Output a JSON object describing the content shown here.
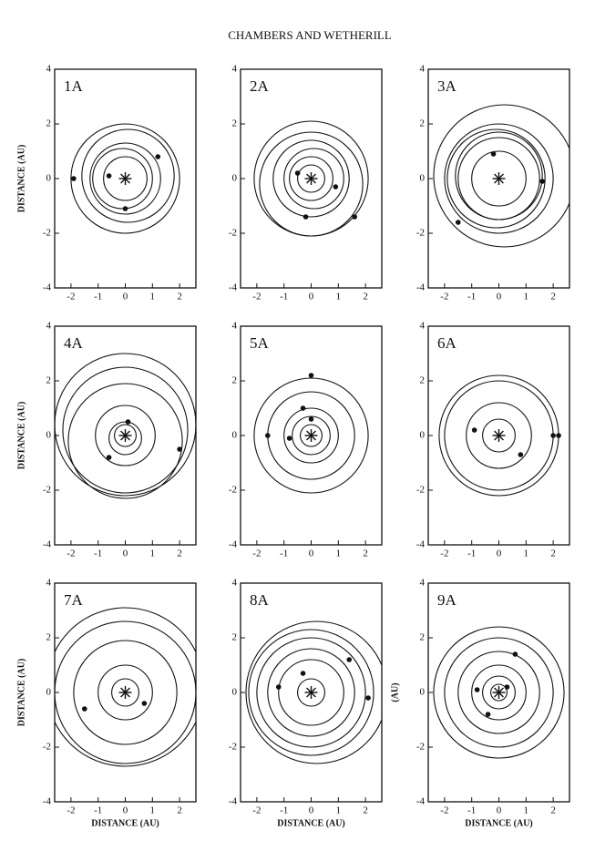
{
  "header": {
    "title": "CHAMBERS AND WETHERILL"
  },
  "chart_data": [
    {
      "type": "orbit",
      "label": "1A",
      "ylabel": "DISTANCE (AU)",
      "xlim": [
        -2.6,
        2.6
      ],
      "ylim": [
        -4,
        4
      ],
      "xticks": [
        -2,
        -1,
        0,
        1,
        2
      ],
      "yticks": [
        -4,
        -2,
        0,
        2,
        4
      ],
      "orbits": [
        {
          "cx": 0,
          "cy": 0,
          "r": 2.0
        },
        {
          "cx": 0.1,
          "cy": 0.1,
          "r": 1.7
        },
        {
          "cx": 0,
          "cy": 0,
          "r": 1.3
        },
        {
          "cx": -0.1,
          "cy": 0,
          "r": 1.1
        },
        {
          "cx": 0,
          "cy": 0,
          "r": 0.8
        }
      ],
      "points": {
        "x": [
          -1.9,
          -0.6,
          0,
          1.2
        ],
        "y": [
          0,
          0.1,
          -1.1,
          0.8
        ]
      }
    },
    {
      "type": "orbit",
      "label": "2A",
      "xlim": [
        -2.6,
        2.6
      ],
      "ylim": [
        -4,
        4
      ],
      "xticks": [
        -2,
        -1,
        0,
        1,
        2
      ],
      "yticks": [
        -4,
        -2,
        0,
        2,
        4
      ],
      "orbits": [
        {
          "cx": 0,
          "cy": 0,
          "r": 2.1
        },
        {
          "cx": 0,
          "cy": -0.2,
          "r": 1.9
        },
        {
          "cx": 0,
          "cy": 0,
          "r": 1.4
        },
        {
          "cx": 0.1,
          "cy": 0,
          "r": 1.1
        },
        {
          "cx": 0,
          "cy": 0,
          "r": 0.8
        },
        {
          "cx": 0,
          "cy": 0,
          "r": 0.5
        }
      ],
      "points": {
        "x": [
          -0.5,
          0.9,
          -0.2,
          1.6
        ],
        "y": [
          0.2,
          -0.3,
          -1.4,
          -1.4
        ]
      }
    },
    {
      "type": "orbit",
      "label": "3A",
      "xlim": [
        -2.6,
        2.6
      ],
      "ylim": [
        -4,
        4
      ],
      "xticks": [
        -2,
        -1,
        0,
        1,
        2
      ],
      "yticks": [
        -4,
        -2,
        0,
        2,
        4
      ],
      "orbits": [
        {
          "cx": 0.2,
          "cy": 0.1,
          "r": 2.6
        },
        {
          "cx": 0,
          "cy": 0,
          "r": 2.0
        },
        {
          "cx": -0.1,
          "cy": 0,
          "r": 1.8
        },
        {
          "cx": 0,
          "cy": 0.1,
          "r": 1.6
        },
        {
          "cx": 0,
          "cy": 0,
          "r": 1.5
        },
        {
          "cx": 0,
          "cy": 0,
          "r": 1.0
        }
      ],
      "points": {
        "x": [
          -0.2,
          1.6,
          -1.5
        ],
        "y": [
          0.9,
          -0.1,
          -1.6
        ]
      }
    },
    {
      "type": "orbit",
      "label": "4A",
      "ylabel": "DISTANCE (AU)",
      "xlim": [
        -2.6,
        2.6
      ],
      "ylim": [
        -4,
        4
      ],
      "xticks": [
        -2,
        -1,
        0,
        1,
        2
      ],
      "yticks": [
        -4,
        -2,
        0,
        2,
        4
      ],
      "orbits": [
        {
          "cx": 0,
          "cy": 0.4,
          "r": 2.6
        },
        {
          "cx": 0,
          "cy": 0.2,
          "r": 2.3
        },
        {
          "cx": 0,
          "cy": -0.2,
          "r": 2.1
        },
        {
          "cx": 0,
          "cy": 0,
          "r": 1.1
        },
        {
          "cx": 0,
          "cy": -0.1,
          "r": 0.6
        },
        {
          "cx": 0,
          "cy": 0,
          "r": 0.4
        }
      ],
      "points": {
        "x": [
          -0.6,
          2.0,
          0.1
        ],
        "y": [
          -0.8,
          -0.5,
          0.5
        ]
      }
    },
    {
      "type": "orbit",
      "label": "5A",
      "xlim": [
        -2.6,
        2.6
      ],
      "ylim": [
        -4,
        4
      ],
      "xticks": [
        -2,
        -1,
        0,
        1,
        2
      ],
      "yticks": [
        -4,
        -2,
        0,
        2,
        4
      ],
      "orbits": [
        {
          "cx": 0,
          "cy": 0,
          "r": 2.1
        },
        {
          "cx": 0,
          "cy": 0,
          "r": 1.6
        },
        {
          "cx": 0,
          "cy": 0,
          "r": 1.0
        },
        {
          "cx": 0,
          "cy": 0,
          "r": 0.7
        },
        {
          "cx": 0,
          "cy": 0,
          "r": 0.4
        }
      ],
      "points": {
        "x": [
          0,
          -0.3,
          0,
          -0.8,
          -1.6
        ],
        "y": [
          2.2,
          1.0,
          0.6,
          -0.1,
          0
        ]
      }
    },
    {
      "type": "orbit",
      "label": "6A",
      "xlim": [
        -2.6,
        2.6
      ],
      "ylim": [
        -4,
        4
      ],
      "xticks": [
        -2,
        -1,
        0,
        1,
        2
      ],
      "yticks": [
        -4,
        -2,
        0,
        2,
        4
      ],
      "orbits": [
        {
          "cx": 0,
          "cy": 0,
          "r": 2.2
        },
        {
          "cx": 0,
          "cy": 0,
          "r": 2.0
        },
        {
          "cx": 0,
          "cy": 0,
          "r": 1.2
        },
        {
          "cx": 0,
          "cy": 0,
          "r": 0.6
        }
      ],
      "points": {
        "x": [
          2.0,
          2.2,
          0.8,
          -0.9
        ],
        "y": [
          0,
          0,
          -0.7,
          0.2
        ]
      }
    },
    {
      "type": "orbit",
      "label": "7A",
      "ylabel": "DISTANCE (AU)",
      "xlabel": "DISTANCE (AU)",
      "xlim": [
        -2.6,
        2.6
      ],
      "ylim": [
        -4,
        4
      ],
      "xticks": [
        -2,
        -1,
        0,
        1,
        2
      ],
      "yticks": [
        -4,
        -2,
        0,
        2,
        4
      ],
      "orbits": [
        {
          "cx": 0,
          "cy": 0.2,
          "r": 2.9
        },
        {
          "cx": 0,
          "cy": 0,
          "r": 2.6
        },
        {
          "cx": 0,
          "cy": 0,
          "r": 1.9
        },
        {
          "cx": 0,
          "cy": 0,
          "r": 1.0
        },
        {
          "cx": 0,
          "cy": 0,
          "r": 0.5
        }
      ],
      "points": {
        "x": [
          0.7,
          -1.5
        ],
        "y": [
          -0.4,
          -0.6
        ]
      }
    },
    {
      "type": "orbit",
      "label": "8A",
      "xlabel": "DISTANCE (AU)",
      "xlim": [
        -2.6,
        2.6
      ],
      "ylim": [
        -4,
        4
      ],
      "xticks": [
        -2,
        -1,
        0,
        1,
        2
      ],
      "yticks": [
        -4,
        -2,
        0,
        2,
        4
      ],
      "orbits": [
        {
          "cx": 0.2,
          "cy": 0,
          "r": 2.6
        },
        {
          "cx": 0,
          "cy": 0,
          "r": 2.3
        },
        {
          "cx": 0,
          "cy": 0,
          "r": 2.0
        },
        {
          "cx": 0,
          "cy": 0,
          "r": 1.6
        },
        {
          "cx": 0,
          "cy": 0,
          "r": 1.2
        },
        {
          "cx": 0,
          "cy": 0,
          "r": 0.5
        }
      ],
      "points": {
        "x": [
          -0.3,
          1.4,
          -1.2,
          2.1
        ],
        "y": [
          0.7,
          1.2,
          0.2,
          -0.2
        ]
      }
    },
    {
      "type": "orbit",
      "label": "9A",
      "ylabel": "(AU)",
      "xlabel": "DISTANCE (AU)",
      "xlim": [
        -2.6,
        2.6
      ],
      "ylim": [
        -4,
        4
      ],
      "xticks": [
        -2,
        -1,
        0,
        1,
        2
      ],
      "yticks": [
        -4,
        -2,
        0,
        2,
        4
      ],
      "orbits": [
        {
          "cx": 0,
          "cy": 0,
          "r": 2.4
        },
        {
          "cx": 0,
          "cy": 0,
          "r": 2.0
        },
        {
          "cx": 0,
          "cy": 0,
          "r": 1.5
        },
        {
          "cx": 0,
          "cy": 0,
          "r": 1.0
        },
        {
          "cx": 0,
          "cy": 0,
          "r": 0.6
        },
        {
          "cx": 0,
          "cy": 0,
          "r": 0.3
        }
      ],
      "points": {
        "x": [
          0.6,
          -0.4,
          -0.8,
          0.3
        ],
        "y": [
          1.4,
          -0.8,
          0.1,
          0.2
        ]
      }
    }
  ]
}
